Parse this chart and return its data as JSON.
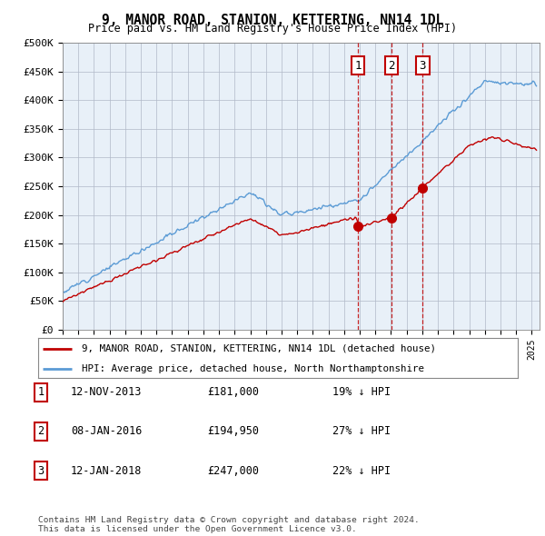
{
  "title": "9, MANOR ROAD, STANION, KETTERING, NN14 1DL",
  "subtitle": "Price paid vs. HM Land Registry's House Price Index (HPI)",
  "ylabel_ticks": [
    "£0",
    "£50K",
    "£100K",
    "£150K",
    "£200K",
    "£250K",
    "£300K",
    "£350K",
    "£400K",
    "£450K",
    "£500K"
  ],
  "ytick_vals": [
    0,
    50000,
    100000,
    150000,
    200000,
    250000,
    300000,
    350000,
    400000,
    450000,
    500000
  ],
  "ylim": [
    0,
    500000
  ],
  "xlim_start": 1995.0,
  "xlim_end": 2025.5,
  "hpi_color": "#5b9bd5",
  "sale_color": "#c00000",
  "chart_bg": "#e8f0f8",
  "sale_points": [
    {
      "date_num": 2013.87,
      "price": 181000,
      "label": "1",
      "date_str": "12-NOV-2013",
      "price_str": "£181,000",
      "pct_str": "19% ↓ HPI"
    },
    {
      "date_num": 2016.02,
      "price": 194950,
      "label": "2",
      "date_str": "08-JAN-2016",
      "price_str": "£194,950",
      "pct_str": "27% ↓ HPI"
    },
    {
      "date_num": 2018.03,
      "price": 247000,
      "label": "3",
      "date_str": "12-JAN-2018",
      "price_str": "£247,000",
      "pct_str": "22% ↓ HPI"
    }
  ],
  "legend_line1": "9, MANOR ROAD, STANION, KETTERING, NN14 1DL (detached house)",
  "legend_line2": "HPI: Average price, detached house, North Northamptonshire",
  "footer": "Contains HM Land Registry data © Crown copyright and database right 2024.\nThis data is licensed under the Open Government Licence v3.0.",
  "background_color": "#ffffff",
  "grid_color": "#b0b8c8"
}
